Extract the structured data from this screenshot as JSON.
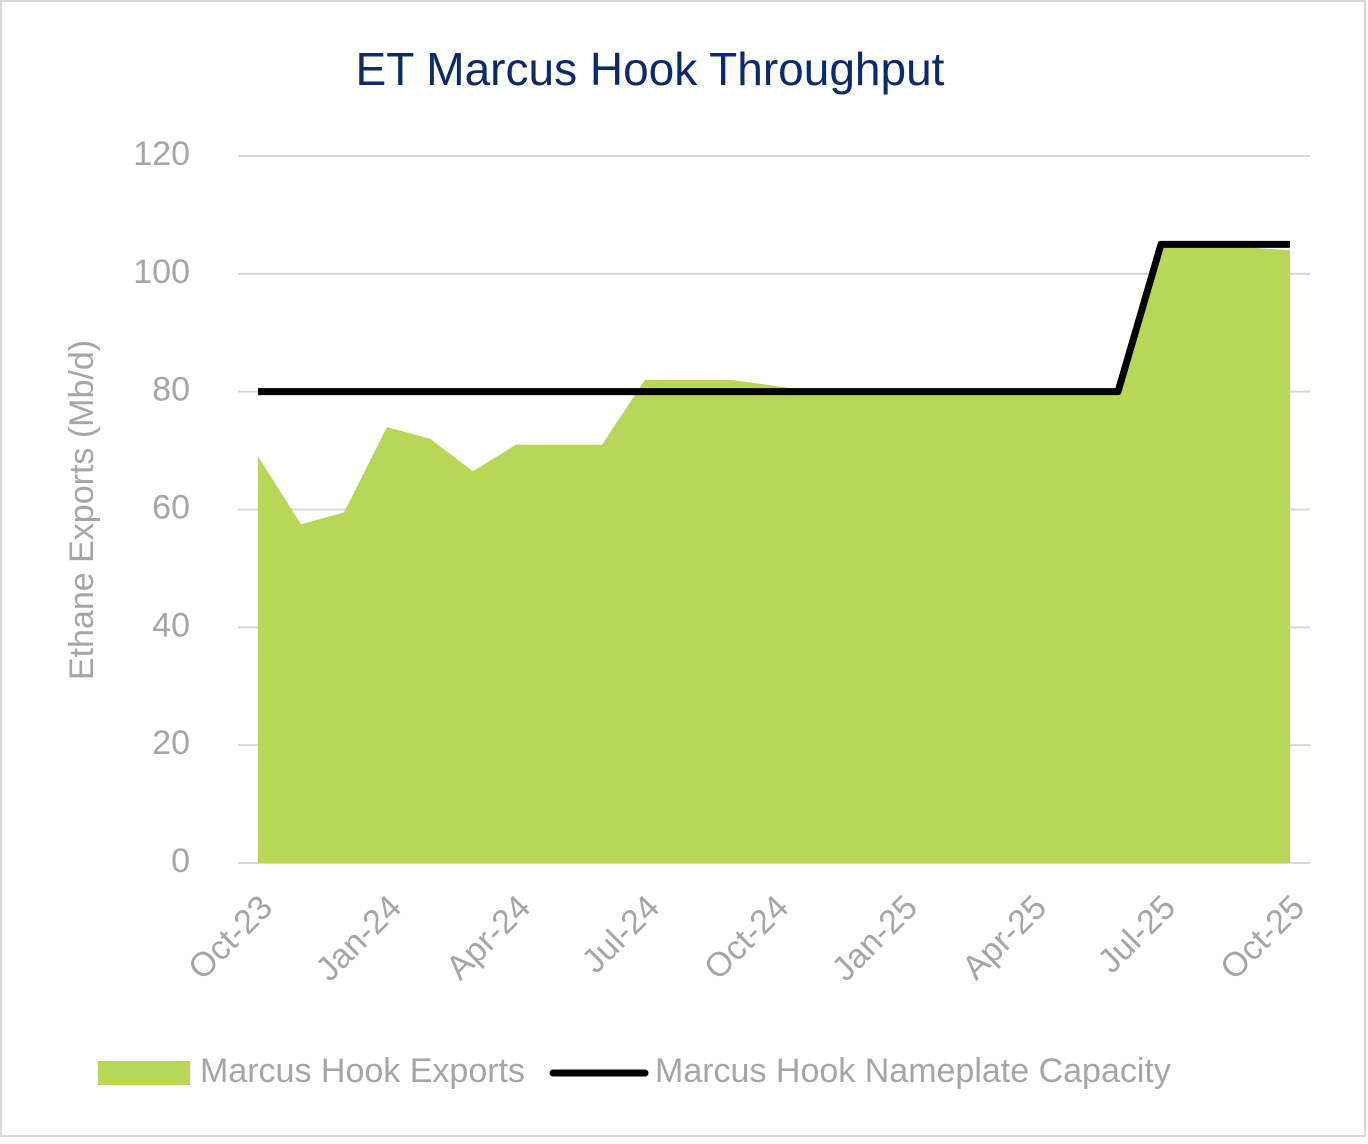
{
  "chart_data": {
    "type": "area-line",
    "title": "ET Marcus Hook Throughput",
    "y_label": "Ethane Exports (Mb/d)",
    "categories": [
      "Oct-23",
      null,
      null,
      "Jan-24",
      null,
      null,
      "Apr-24",
      null,
      null,
      "Jul-24",
      null,
      null,
      "Oct-24",
      null,
      null,
      "Jan-25",
      null,
      null,
      "Apr-25",
      null,
      null,
      "Jul-25",
      null,
      null,
      "Oct-25"
    ],
    "series": [
      {
        "name": "Marcus Hook Exports",
        "color": "#b8d657",
        "kind": "area",
        "values": [
          69,
          57.5,
          59.5,
          74,
          72,
          66.5,
          71,
          71,
          71,
          82,
          82,
          82,
          81,
          80,
          80,
          80,
          80,
          80,
          80,
          80,
          80,
          104.5,
          104.5,
          104.5,
          104
        ]
      },
      {
        "name": "Marcus Hook Nameplate Capacity",
        "color": "#000000",
        "kind": "line",
        "values": [
          80,
          80,
          80,
          80,
          80,
          80,
          80,
          80,
          80,
          80,
          80,
          80,
          80,
          80,
          80,
          80,
          80,
          80,
          80,
          80,
          80,
          105,
          105,
          105,
          105
        ]
      }
    ],
    "ylim": [
      0,
      120
    ],
    "yticks": [
      0,
      20,
      40,
      60,
      80,
      100,
      120
    ],
    "grid": true,
    "legend": "bottom"
  }
}
